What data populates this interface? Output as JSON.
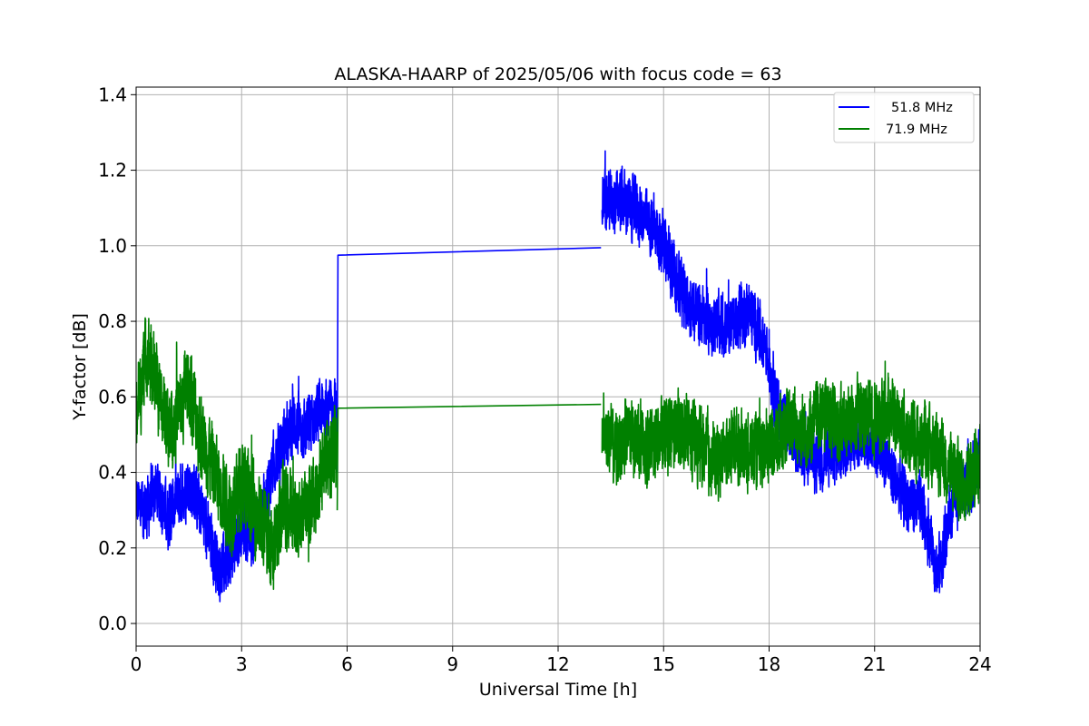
{
  "chart_data": {
    "type": "line",
    "title": "ALASKA-HAARP of 2025/05/06 with focus code = 63",
    "xlabel": "Universal Time [h]",
    "ylabel": "Y-factor [dB]",
    "xlim": [
      0,
      24
    ],
    "ylim": [
      -0.06,
      1.42
    ],
    "xticks": [
      0,
      3,
      6,
      9,
      12,
      15,
      18,
      21,
      24
    ],
    "yticks": [
      0.0,
      0.2,
      0.4,
      0.6,
      0.8,
      1.0,
      1.2,
      1.4
    ],
    "xtick_labels": [
      "0",
      "3",
      "6",
      "9",
      "12",
      "15",
      "18",
      "21",
      "24"
    ],
    "ytick_labels": [
      "0.0",
      "0.2",
      "0.4",
      "0.6",
      "0.8",
      "1.0",
      "1.2",
      "1.4"
    ],
    "grid": true,
    "legend_position": "top-right",
    "series": [
      {
        "name": "51.8 MHz",
        "color": "#0000ff",
        "segments": [
          {
            "x": [
              0.0,
              0.3,
              0.6,
              0.9,
              1.2,
              1.5,
              1.8,
              2.1,
              2.4,
              2.7,
              3.0,
              3.3,
              3.6,
              3.9,
              4.2,
              4.5,
              4.8,
              5.1,
              5.4,
              5.7
            ],
            "y": [
              0.32,
              0.3,
              0.36,
              0.28,
              0.33,
              0.38,
              0.31,
              0.22,
              0.14,
              0.18,
              0.26,
              0.23,
              0.3,
              0.42,
              0.48,
              0.53,
              0.51,
              0.55,
              0.57,
              0.56
            ],
            "noise": 0.11
          },
          {
            "x": [
              5.72,
              5.74,
              13.22
            ],
            "y": [
              0.4,
              0.975,
              0.995
            ],
            "noise": 0
          },
          {
            "x": [
              13.25,
              13.8,
              14.4,
              15.0,
              15.6,
              16.2,
              16.8,
              17.4,
              17.9,
              18.3,
              18.8,
              19.4,
              20.0,
              20.6,
              21.2,
              21.8,
              22.4,
              22.8,
              23.3,
              24.0
            ],
            "y": [
              1.12,
              1.12,
              1.08,
              1.0,
              0.86,
              0.8,
              0.78,
              0.83,
              0.74,
              0.55,
              0.48,
              0.42,
              0.47,
              0.5,
              0.46,
              0.34,
              0.3,
              0.13,
              0.35,
              0.42
            ],
            "noise": 0.11
          }
        ]
      },
      {
        "name": "71.9 MHz",
        "color": "#008000",
        "segments": [
          {
            "x": [
              0.0,
              0.3,
              0.6,
              0.9,
              1.2,
              1.5,
              1.8,
              2.1,
              2.4,
              2.7,
              3.0,
              3.3,
              3.6,
              3.9,
              4.2,
              4.5,
              4.8,
              5.1,
              5.4,
              5.7
            ],
            "y": [
              0.55,
              0.72,
              0.63,
              0.52,
              0.56,
              0.64,
              0.5,
              0.44,
              0.36,
              0.3,
              0.37,
              0.33,
              0.25,
              0.21,
              0.32,
              0.27,
              0.31,
              0.34,
              0.44,
              0.46
            ],
            "noise": 0.15
          },
          {
            "x": [
              5.72,
              5.74,
              13.22
            ],
            "y": [
              0.3,
              0.57,
              0.58
            ],
            "noise": 0
          },
          {
            "x": [
              13.25,
              13.6,
              14.0,
              14.5,
              15.0,
              15.5,
              16.0,
              16.5,
              17.0,
              17.5,
              18.0,
              18.5,
              19.0,
              19.5,
              20.0,
              20.5,
              21.0,
              21.5,
              22.0,
              22.5,
              23.0,
              23.5,
              24.0
            ],
            "y": [
              0.52,
              0.46,
              0.5,
              0.47,
              0.49,
              0.52,
              0.47,
              0.43,
              0.48,
              0.45,
              0.47,
              0.53,
              0.51,
              0.56,
              0.52,
              0.55,
              0.55,
              0.57,
              0.49,
              0.47,
              0.42,
              0.37,
              0.42
            ],
            "noise": 0.13
          }
        ]
      }
    ]
  }
}
